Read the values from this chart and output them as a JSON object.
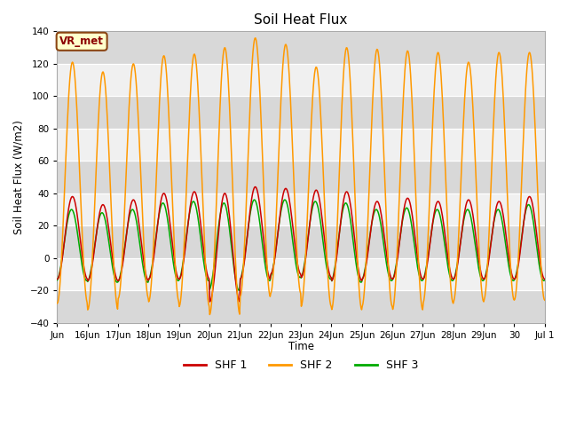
{
  "title": "Soil Heat Flux",
  "ylabel": "Soil Heat Flux (W/m2)",
  "xlabel": "Time",
  "ylim": [
    -40,
    140
  ],
  "yticks": [
    -40,
    -20,
    0,
    20,
    40,
    60,
    80,
    100,
    120,
    140
  ],
  "legend_labels": [
    "SHF 1",
    "SHF 2",
    "SHF 3"
  ],
  "legend_colors": [
    "#cc0000",
    "#ff9900",
    "#00aa00"
  ],
  "annotation_text": "VR_met",
  "fig_bg": "#ffffff",
  "plot_bg": "#f0f0f0",
  "band_light": "#f0f0f0",
  "band_dark": "#d8d8d8",
  "n_days": 16,
  "ppd": 48,
  "tick_labels": [
    "Jun",
    "16Jun",
    "17Jun",
    "18Jun",
    "19Jun",
    "20Jun",
    "21Jun",
    "22Jun",
    "23Jun",
    "24Jun",
    "25Jun",
    "26Jun",
    "27Jun",
    "28Jun",
    "29Jun",
    "30",
    "Jul 1"
  ],
  "shf1_amps": [
    38,
    33,
    36,
    40,
    41,
    40,
    44,
    43,
    42,
    41,
    35,
    37,
    35,
    36,
    35,
    38
  ],
  "shf1_mins": [
    -13,
    -14,
    -14,
    -13,
    -13,
    -27,
    -13,
    -10,
    -12,
    -14,
    -13,
    -13,
    -13,
    -13,
    -13,
    -13
  ],
  "shf2_amps": [
    121,
    115,
    120,
    125,
    126,
    130,
    136,
    132,
    118,
    130,
    129,
    128,
    127,
    121,
    127,
    127
  ],
  "shf2_mins": [
    -28,
    -32,
    -25,
    -27,
    -30,
    -35,
    -24,
    -22,
    -30,
    -32,
    -30,
    -32,
    -28,
    -27,
    -26,
    -26
  ],
  "shf3_amps": [
    30,
    28,
    30,
    34,
    35,
    34,
    36,
    36,
    35,
    34,
    30,
    31,
    30,
    30,
    30,
    33
  ],
  "shf3_mins": [
    -14,
    -15,
    -15,
    -14,
    -14,
    -20,
    -14,
    -12,
    -13,
    -15,
    -14,
    -14,
    -14,
    -14,
    -14,
    -14
  ]
}
